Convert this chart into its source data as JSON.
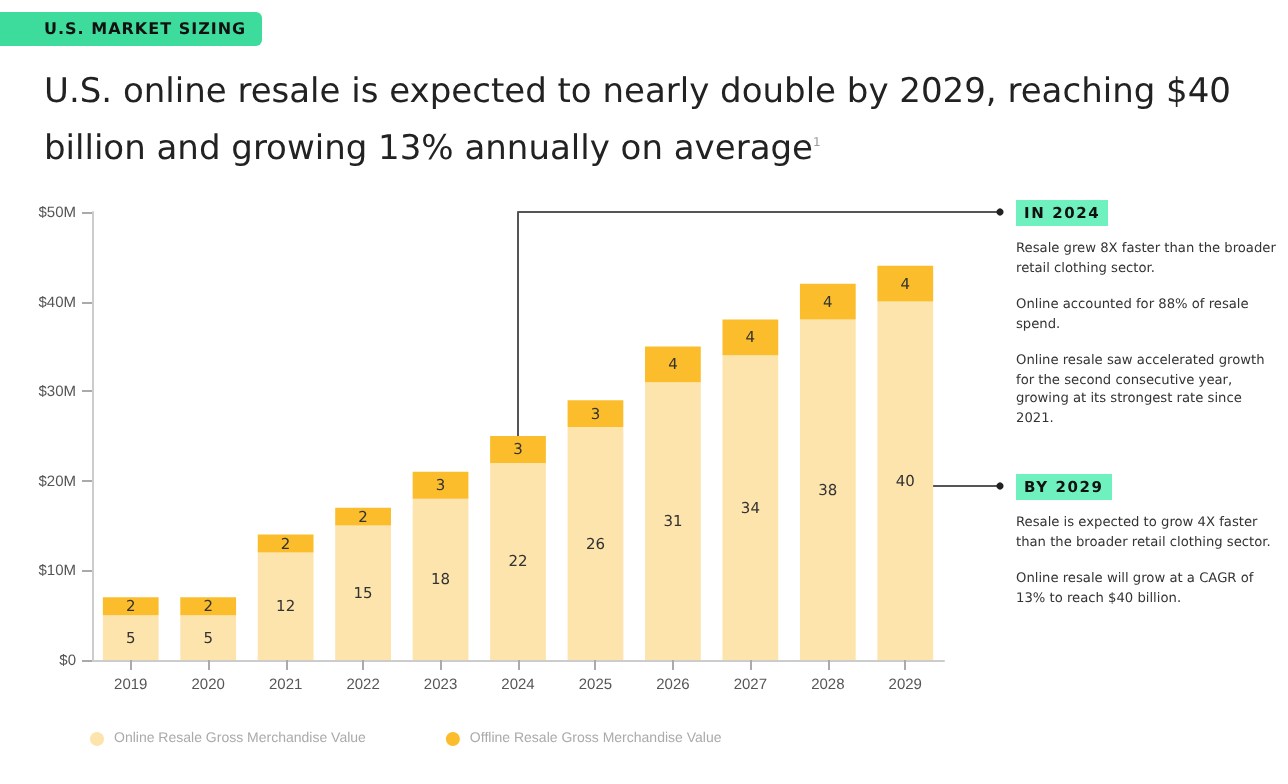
{
  "chart_data": {
    "type": "bar",
    "stacked": true,
    "subtitle": "U.S. MARKET SIZING",
    "title": "U.S. online resale is expected to nearly double by 2029, reaching $40 billion and growing 13% annually on average$^{1}$",
    "categories": [
      "2019",
      "2020",
      "2021",
      "2022",
      "2023",
      "2024",
      "2025",
      "2026",
      "2027",
      "2028",
      "2029"
    ],
    "series": [
      {
        "name": "Online Resale Gross Merchandise Value",
        "color": "#fde4ad",
        "values": [
          5,
          5,
          12,
          15,
          18,
          22,
          26,
          31,
          34,
          38,
          40
        ]
      },
      {
        "name": "Offline Resale Gross Merchandise Value",
        "color": "#fbbd2c",
        "values": [
          2,
          2,
          2,
          2,
          3,
          3,
          3,
          4,
          4,
          4,
          4
        ]
      }
    ],
    "ylim": [
      0,
      50
    ],
    "yticks": [
      {
        "value": 0,
        "label": "$0"
      },
      {
        "value": 10,
        "label": "$10M"
      },
      {
        "value": 20,
        "label": "$20M"
      },
      {
        "value": 30,
        "label": "$30M"
      },
      {
        "value": 40,
        "label": "$40M"
      },
      {
        "value": 50,
        "label": "$50M"
      }
    ],
    "grid": false,
    "legend": "bottom",
    "data_labels": true,
    "annotations": [
      "IN 2024",
      "Resale grew 8X faster than the broader retail clothing sector.",
      "Online accounted for 88% of resale spend.",
      "Online resale saw accelerated growth for the second consecutive year, growing at its strongest rate since 2021.",
      "BY 2029",
      "Resale is expected to grow 4X faster than the broader retail clothing sector.",
      "Online resale will grow at a CAGR of 13% to reach $40 billion."
    ]
  }
}
